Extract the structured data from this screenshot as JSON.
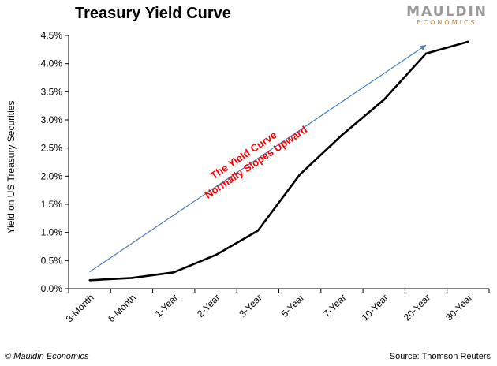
{
  "header": {
    "title": "Treasury Yield Curve"
  },
  "logo": {
    "brand": "MAULDIN",
    "sub": "ECONOMICS"
  },
  "footer": {
    "copyright": "© Mauldin Economics",
    "source": "Source: Thomson Reuters"
  },
  "colors": {
    "line": "#000000",
    "arrow": "#4a7ebb",
    "annotation": "#ff0000",
    "logo_brand": "#9a9a9a",
    "logo_sub": "#c07a2a"
  },
  "chart_data": {
    "type": "line",
    "title": "Treasury Yield Curve",
    "xlabel": "",
    "ylabel": "Yield on US Treasury Securities",
    "categories": [
      "3-Month",
      "6-Month",
      "1-Year",
      "2-Year",
      "3-Year",
      "5-Year",
      "7-Year",
      "10-Year",
      "20-Year",
      "30-Year"
    ],
    "series": [
      {
        "values": [
          0.15,
          0.19,
          0.29,
          0.6,
          1.03,
          2.03,
          2.73,
          3.36,
          4.18,
          4.39
        ]
      }
    ],
    "ylim": [
      0,
      4.5
    ],
    "yticks": [
      0,
      0.5,
      1.0,
      1.5,
      2.0,
      2.5,
      3.0,
      3.5,
      4.0,
      4.5
    ],
    "ytick_labels": [
      "0.0%",
      "0.5%",
      "1.0%",
      "1.5%",
      "2.0%",
      "2.5%",
      "3.0%",
      "3.5%",
      "4.0%",
      "4.5%"
    ],
    "grid": false,
    "annotation": {
      "lines": [
        "The Yield Curve",
        "Normally Slopes Upward"
      ],
      "arrow": {
        "from": {
          "category": 0,
          "value": 0.3
        },
        "to": {
          "category": 8,
          "value": 4.33
        }
      }
    }
  }
}
